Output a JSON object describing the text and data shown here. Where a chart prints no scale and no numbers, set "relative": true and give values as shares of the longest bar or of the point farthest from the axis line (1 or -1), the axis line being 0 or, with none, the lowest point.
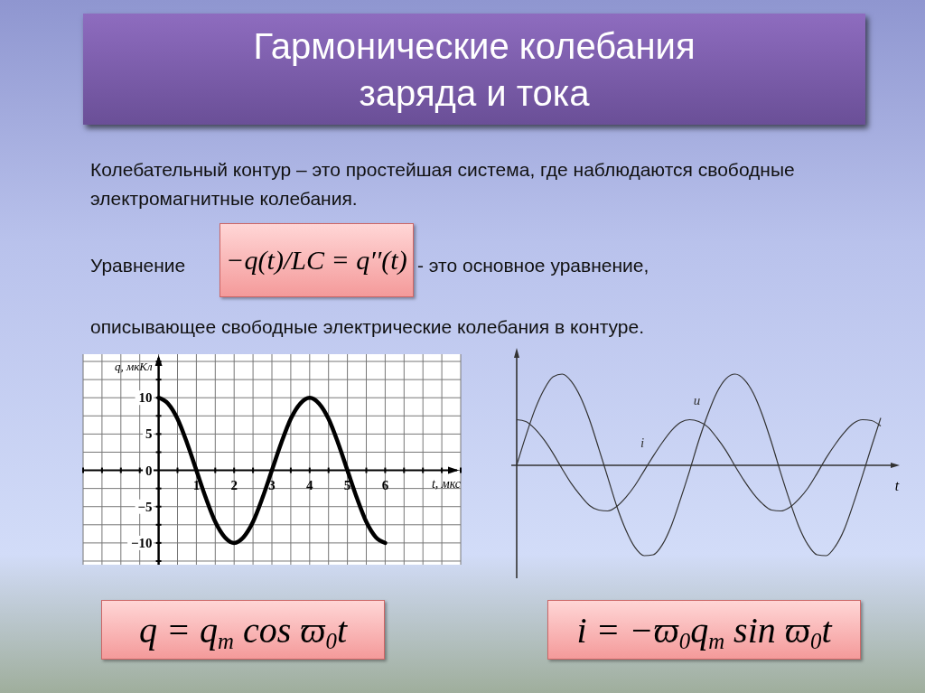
{
  "chart_data": [
    {
      "type": "other",
      "title": "Гармонические колебания заряда и тока",
      "annotations": [
        "Колебательный контур – это простейшая система, где наблюдаются свободные электромагнитные колебания.",
        "Уравнение",
        "−q(t)/LC = q′′(t)",
        "- это основное уравнение,",
        "описывающее свободные электрические колебания в контуре.",
        "q = q$_{m}$ cos ϖ$_{0}$t",
        "i = −ϖ$_{0}$q$_{m}$ sin ϖ$_{0}$t"
      ]
    },
    {
      "type": "line",
      "xlabel": "t, мкс",
      "ylabel": "q, мкКл",
      "grid": true,
      "x": [
        0,
        0.25,
        0.5,
        0.75,
        1,
        1.25,
        1.5,
        1.75,
        2,
        2.25,
        2.5,
        2.75,
        3,
        3.25,
        3.5,
        3.75,
        4,
        4.25,
        4.5,
        4.75,
        5,
        5.25,
        5.5,
        5.75,
        6
      ],
      "series": [
        {
          "color": "#000000",
          "values": [
            10,
            9.2,
            7.1,
            3.8,
            0,
            -3.8,
            -7.1,
            -9.2,
            -10,
            -9.2,
            -7.1,
            -3.8,
            0,
            3.8,
            7.1,
            9.2,
            10,
            9.2,
            7.1,
            3.8,
            0,
            -3.8,
            -7.1,
            -9.2,
            -10
          ]
        }
      ],
      "xlim": [
        -2,
        8
      ],
      "ylim": [
        -13,
        16
      ],
      "xticks": [
        {
          "value": -2,
          "label": null
        },
        {
          "value": -1.5,
          "label": null
        },
        {
          "value": -1,
          "label": null
        },
        {
          "value": -0.5,
          "label": null
        },
        {
          "value": 0,
          "label": null
        },
        {
          "value": 0.5,
          "label": null
        },
        1,
        {
          "value": 1.5,
          "label": null
        },
        2,
        {
          "value": 2.5,
          "label": null
        },
        3,
        {
          "value": 3.5,
          "label": null
        },
        4,
        {
          "value": 4.5,
          "label": null
        },
        5,
        {
          "value": 5.5,
          "label": null
        },
        6,
        {
          "value": 6.5,
          "label": null
        },
        {
          "value": 7,
          "label": null
        },
        {
          "value": 7.5,
          "label": null
        },
        {
          "value": 8,
          "label": null
        }
      ],
      "yticks": [
        {
          "value": -12.5,
          "label": null
        },
        {
          "value": -10,
          "label": "−10"
        },
        {
          "value": -7.5,
          "label": null
        },
        {
          "value": -5,
          "label": "−5"
        },
        {
          "value": -2.5,
          "label": null
        },
        0,
        {
          "value": 2.5,
          "label": null
        },
        5,
        {
          "value": 7.5,
          "label": null
        },
        10,
        {
          "value": 12.5,
          "label": null
        },
        {
          "value": 15,
          "label": null
        }
      ]
    },
    {
      "type": "line",
      "relative": true,
      "xlabel": "t",
      "categories": [
        null,
        null,
        null,
        null,
        null,
        null,
        null,
        null,
        null,
        null,
        null,
        null,
        null,
        null,
        null,
        null,
        null,
        null,
        null,
        null,
        null,
        null,
        null,
        null,
        null,
        null,
        null,
        null,
        null,
        null,
        null,
        null,
        null,
        null,
        null,
        null,
        null,
        null,
        null,
        null,
        null
      ],
      "series": [
        {
          "name": "u",
          "color": "#333333",
          "values": [
            0,
            0.32,
            0.61,
            0.83,
            0.97,
            1,
            0.92,
            0.75,
            0.5,
            0.19,
            -0.13,
            -0.45,
            -0.71,
            -0.9,
            -0.99,
            -0.98,
            -0.87,
            -0.66,
            -0.37,
            -0.06,
            0.27,
            0.56,
            0.8,
            0.95,
            1,
            0.94,
            0.79,
            0.55,
            0.25,
            -0.08,
            -0.39,
            -0.67,
            -0.87,
            -0.98,
            -0.99,
            -0.89,
            -0.7,
            -0.42,
            -0.11,
            0.21,
            0.52
          ]
        },
        {
          "name": "i",
          "color": "#333333",
          "values": [
            0.5,
            0.48,
            0.4,
            0.28,
            0.13,
            -0.04,
            -0.2,
            -0.33,
            -0.44,
            -0.49,
            -0.5,
            -0.45,
            -0.35,
            -0.22,
            -0.06,
            0.1,
            0.25,
            0.38,
            0.47,
            0.5,
            0.48,
            0.42,
            0.3,
            0.16,
            -0.01,
            -0.17,
            -0.31,
            -0.42,
            -0.49,
            -0.5,
            -0.46,
            -0.37,
            -0.25,
            -0.09,
            0.08,
            0.23,
            0.36,
            0.46,
            0.5,
            0.49,
            0.43
          ]
        }
      ]
    }
  ]
}
